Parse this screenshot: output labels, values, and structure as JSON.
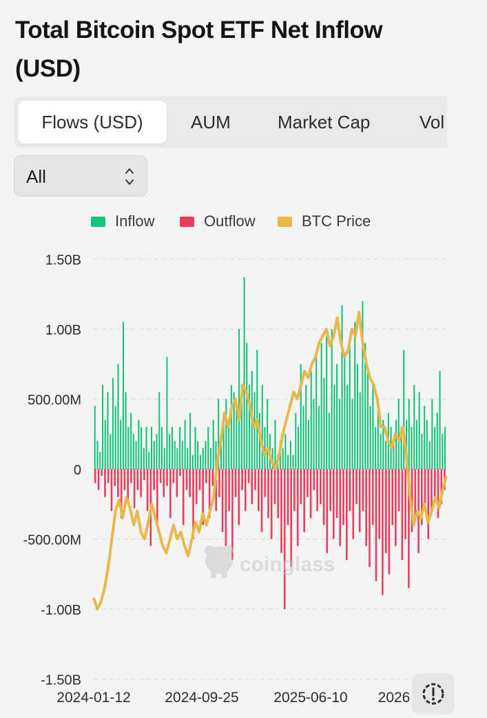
{
  "title": "Total Bitcoin Spot ETF Net Inflow (USD)",
  "tabs": [
    {
      "label": "Flows (USD)",
      "active": true
    },
    {
      "label": "AUM",
      "active": false
    },
    {
      "label": "Market Cap",
      "active": false
    },
    {
      "label": "Vol",
      "active": false
    }
  ],
  "range_select": {
    "value": "All"
  },
  "watermark": "coinglass",
  "icons": {
    "select": "chevron-updown-icon",
    "help": "alert-circle-icon",
    "watermark": "coinglass-logo-icon"
  },
  "colors": {
    "inflow": "#17c27a",
    "outflow": "#ec3c5a",
    "btc_price": "#e8b94a"
  },
  "chart_data": {
    "type": "bar",
    "legend": [
      "Inflow",
      "Outflow",
      "BTC Price"
    ],
    "y_ticks": [
      "1.50B",
      "1.00B",
      "500.00M",
      "0",
      "-500.00M",
      "-1.00B",
      "-1.50B"
    ],
    "ylim": [
      -1.5,
      1.5
    ],
    "y_unit": "B USD",
    "x_ticks": [
      "2024-01-12",
      "2024-09-25",
      "2025-06-10",
      "2026"
    ],
    "x_tick_positions": [
      0,
      0.33,
      0.66,
      1.0
    ],
    "grid": "horizontal dashed",
    "legend_placement": "top",
    "bar_series": [
      {
        "name": "Inflow",
        "color": "#17c27a",
        "values": [
          0.45,
          0.2,
          0.12,
          0.6,
          0.35,
          0.55,
          0.25,
          0.65,
          0.45,
          0.75,
          0.35,
          1.05,
          0.55,
          0.3,
          0.4,
          0.25,
          0.2,
          0.35,
          0.3,
          0.15,
          0.3,
          0.12,
          0.3,
          0.2,
          0.25,
          0.55,
          0.3,
          0.15,
          0.8,
          0.25,
          0.3,
          0.2,
          0.15,
          0.3,
          0.2,
          0.35,
          0.15,
          0.4,
          0.1,
          0.3,
          0.2,
          0.1,
          0.15,
          0.2,
          0.3,
          0.15,
          0.35,
          0.2,
          0.5,
          0.25,
          0.4,
          0.5,
          0.3,
          0.6,
          0.55,
          0.45,
          1.0,
          0.6,
          1.37,
          0.9,
          0.6,
          0.7,
          0.55,
          0.85,
          0.4,
          0.6,
          0.3,
          0.5,
          0.25,
          0.15,
          0.35,
          0.1,
          0.2,
          0.15,
          0.25,
          0.1,
          0.2,
          0.1,
          0.4,
          0.3,
          0.75,
          0.45,
          0.6,
          0.35,
          0.7,
          0.5,
          0.85,
          0.45,
          0.9,
          0.65,
          0.95,
          0.4,
          1.0,
          0.6,
          0.75,
          0.5,
          1.17,
          0.8,
          0.6,
          0.9,
          0.5,
          1.05,
          0.75,
          0.55,
          1.2,
          0.9,
          0.7,
          0.45,
          0.6,
          0.3,
          0.5,
          0.25,
          0.35,
          0.2,
          0.4,
          0.3,
          0.2,
          0.35,
          0.5,
          0.3,
          0.85,
          0.35,
          0.5,
          0.3,
          0.6,
          0.35,
          0.55,
          0.25,
          0.45,
          0.35,
          0.2,
          0.5,
          0.3,
          0.4,
          0.7,
          0.25,
          0.3
        ],
        "note": "daily net flows, read approximately"
      },
      {
        "name": "Outflow",
        "color": "#ec3c5a",
        "values": [
          -0.1,
          -0.15,
          -0.05,
          -0.2,
          -0.1,
          -0.3,
          -0.12,
          -0.2,
          -0.35,
          -0.15,
          -0.25,
          -0.1,
          -0.28,
          -0.15,
          -0.2,
          -0.08,
          -0.3,
          -0.55,
          -0.15,
          -0.4,
          -0.1,
          -0.2,
          -0.12,
          -0.35,
          -0.1,
          -0.2,
          -0.05,
          -0.4,
          -0.15,
          -0.2,
          -0.5,
          -0.25,
          -0.15,
          -0.4,
          -0.1,
          -0.35,
          -0.12,
          -0.3,
          -0.2,
          -0.45,
          -0.55,
          -0.3,
          -0.65,
          -0.2,
          -0.4,
          -0.15,
          -0.3,
          -0.1,
          -0.25,
          -0.15,
          -0.3,
          -0.45,
          -0.2,
          -0.35,
          -0.5,
          -0.25,
          -0.35,
          -0.6,
          -1.0,
          -0.4,
          -0.7,
          -0.3,
          -0.55,
          -0.25,
          -0.45,
          -0.2,
          -0.35,
          -0.15,
          -0.3,
          -0.25,
          -0.4,
          -0.6,
          -0.3,
          -0.5,
          -0.35,
          -0.55,
          -0.4,
          -0.65,
          -0.3,
          -0.5,
          -0.25,
          -0.45,
          -0.3,
          -0.55,
          -0.7,
          -0.4,
          -0.8,
          -0.5,
          -0.9,
          -0.6,
          -0.75,
          -0.4,
          -0.55,
          -0.3,
          -0.65,
          -0.5,
          -0.85,
          -0.45,
          -0.35,
          -0.6,
          -0.4,
          -0.25,
          -0.5,
          -0.3,
          -0.2,
          -0.35,
          -0.25,
          -0.15
        ]
      },
      {
        "name": "BTC Price",
        "color": "#e8b94a",
        "values": [
          -0.92,
          -1.0,
          -0.95,
          -0.85,
          -0.7,
          -0.5,
          -0.3,
          -0.22,
          -0.35,
          -0.2,
          -0.28,
          -0.4,
          -0.3,
          -0.45,
          -0.5,
          -0.38,
          -0.25,
          -0.35,
          -0.45,
          -0.55,
          -0.6,
          -0.5,
          -0.4,
          -0.5,
          -0.45,
          -0.55,
          -0.62,
          -0.5,
          -0.38,
          -0.45,
          -0.32,
          -0.4,
          -0.3,
          -0.2,
          0.05,
          0.2,
          0.4,
          0.3,
          0.45,
          0.5,
          0.35,
          0.6,
          0.55,
          0.45,
          0.3,
          0.35,
          0.2,
          0.1,
          0.15,
          0.05,
          0.0,
          0.1,
          0.25,
          0.35,
          0.45,
          0.55,
          0.5,
          0.6,
          0.7,
          0.65,
          0.75,
          0.8,
          0.9,
          0.95,
          1.0,
          0.88,
          0.95,
          1.08,
          0.9,
          0.8,
          0.85,
          1.0,
          0.95,
          1.12,
          0.9,
          0.75,
          0.65,
          0.6,
          0.5,
          0.3,
          0.3,
          0.2,
          0.15,
          0.25,
          0.2,
          0.3,
          0.1,
          -0.2,
          -0.4,
          -0.3,
          -0.35,
          -0.25,
          -0.38,
          -0.3,
          -0.2,
          -0.28,
          -0.15,
          -0.05
        ]
      }
    ]
  }
}
